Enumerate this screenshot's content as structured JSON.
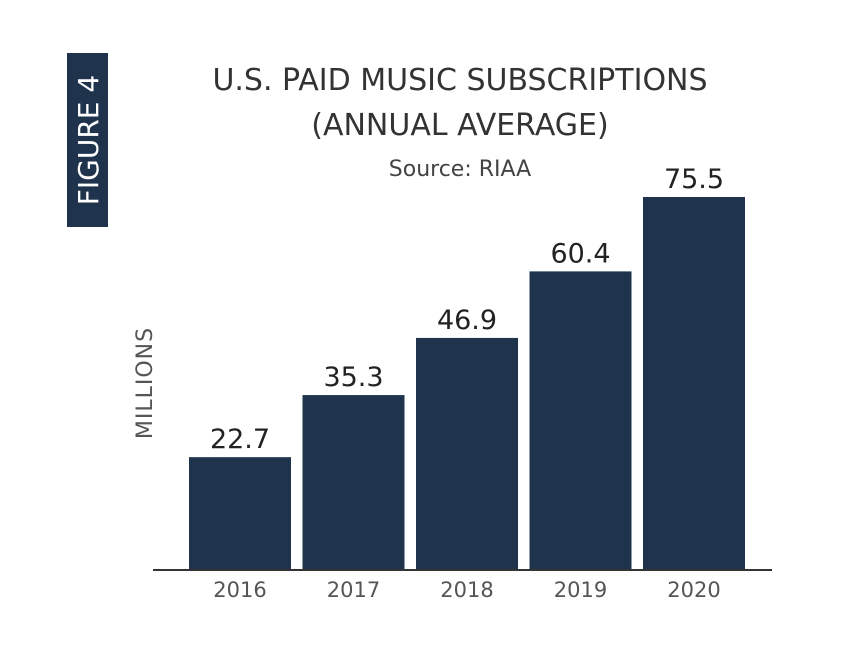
{
  "figure_label": "FIGURE 4",
  "colors": {
    "bar": "#1f344c",
    "badge": "#1f344c",
    "text": "#333333",
    "axis": "#333333"
  },
  "chart_data": {
    "type": "bar",
    "title_line1": "U.S. PAID MUSIC SUBSCRIPTIONS",
    "title_line2": "(ANNUAL AVERAGE)",
    "subtitle": "Source: RIAA",
    "xlabel": "",
    "ylabel": "MILLIONS",
    "categories": [
      "2016",
      "2017",
      "2018",
      "2019",
      "2020"
    ],
    "values": [
      22.7,
      35.3,
      46.9,
      60.4,
      75.5
    ],
    "value_labels": [
      "22.7",
      "35.3",
      "46.9",
      "60.4",
      "75.5"
    ],
    "ylim": [
      0,
      75.5
    ],
    "grid": false
  }
}
